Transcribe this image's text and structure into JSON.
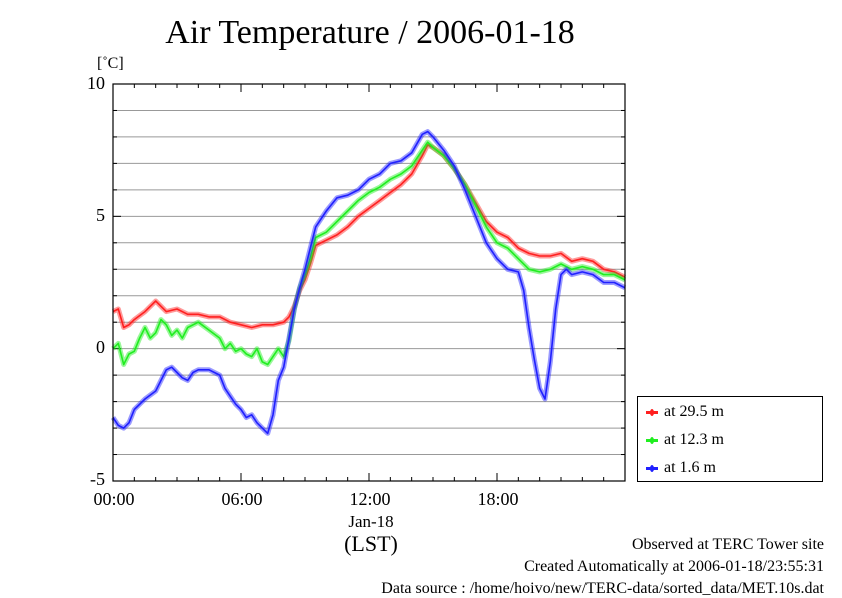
{
  "chart_data": {
    "type": "line",
    "title": "Air Temperature / 2006-01-18",
    "unit": "[˚C]",
    "xlabel": "(LST)",
    "x_date_label": "Jan-18",
    "xlim": [
      0,
      24
    ],
    "ylim": [
      -5,
      10
    ],
    "yticks": [
      "10",
      "5",
      "0",
      "-5"
    ],
    "xticks": [
      "00:00",
      "06:00",
      "12:00",
      "18:00"
    ],
    "grid": true,
    "legend_position": "right-bottom",
    "series": [
      {
        "name": "at 29.5 m",
        "color": "#ff2020",
        "points": [
          [
            0.0,
            1.4
          ],
          [
            0.25,
            1.5
          ],
          [
            0.5,
            0.8
          ],
          [
            0.75,
            0.9
          ],
          [
            1.0,
            1.1
          ],
          [
            1.5,
            1.4
          ],
          [
            2.0,
            1.8
          ],
          [
            2.25,
            1.6
          ],
          [
            2.5,
            1.4
          ],
          [
            3.0,
            1.5
          ],
          [
            3.5,
            1.3
          ],
          [
            4.0,
            1.3
          ],
          [
            4.5,
            1.2
          ],
          [
            5.0,
            1.2
          ],
          [
            5.5,
            1.0
          ],
          [
            6.0,
            0.9
          ],
          [
            6.5,
            0.8
          ],
          [
            7.0,
            0.9
          ],
          [
            7.5,
            0.9
          ],
          [
            8.0,
            1.0
          ],
          [
            8.25,
            1.2
          ],
          [
            8.5,
            1.6
          ],
          [
            8.75,
            2.2
          ],
          [
            9.0,
            2.6
          ],
          [
            9.25,
            3.2
          ],
          [
            9.5,
            3.9
          ],
          [
            10.0,
            4.1
          ],
          [
            10.5,
            4.3
          ],
          [
            11.0,
            4.6
          ],
          [
            11.5,
            5.0
          ],
          [
            12.0,
            5.3
          ],
          [
            12.5,
            5.6
          ],
          [
            13.0,
            5.9
          ],
          [
            13.5,
            6.2
          ],
          [
            14.0,
            6.6
          ],
          [
            14.5,
            7.3
          ],
          [
            14.75,
            7.7
          ],
          [
            15.0,
            7.6
          ],
          [
            15.5,
            7.3
          ],
          [
            16.0,
            6.8
          ],
          [
            16.5,
            6.2
          ],
          [
            17.0,
            5.5
          ],
          [
            17.5,
            4.8
          ],
          [
            18.0,
            4.4
          ],
          [
            18.5,
            4.2
          ],
          [
            19.0,
            3.8
          ],
          [
            19.5,
            3.6
          ],
          [
            20.0,
            3.5
          ],
          [
            20.5,
            3.5
          ],
          [
            21.0,
            3.6
          ],
          [
            21.5,
            3.3
          ],
          [
            22.0,
            3.4
          ],
          [
            22.5,
            3.3
          ],
          [
            23.0,
            3.0
          ],
          [
            23.5,
            2.9
          ],
          [
            24.0,
            2.7
          ]
        ]
      },
      {
        "name": "at 12.3 m",
        "color": "#20ee20",
        "points": [
          [
            0.0,
            0.0
          ],
          [
            0.25,
            0.2
          ],
          [
            0.5,
            -0.6
          ],
          [
            0.75,
            -0.2
          ],
          [
            1.0,
            -0.1
          ],
          [
            1.25,
            0.4
          ],
          [
            1.5,
            0.8
          ],
          [
            1.75,
            0.4
          ],
          [
            2.0,
            0.6
          ],
          [
            2.25,
            1.1
          ],
          [
            2.5,
            0.9
          ],
          [
            2.75,
            0.5
          ],
          [
            3.0,
            0.7
          ],
          [
            3.25,
            0.4
          ],
          [
            3.5,
            0.8
          ],
          [
            4.0,
            1.0
          ],
          [
            4.5,
            0.7
          ],
          [
            5.0,
            0.4
          ],
          [
            5.25,
            0.0
          ],
          [
            5.5,
            0.2
          ],
          [
            5.75,
            -0.1
          ],
          [
            6.0,
            0.0
          ],
          [
            6.25,
            -0.2
          ],
          [
            6.5,
            -0.3
          ],
          [
            6.75,
            0.0
          ],
          [
            7.0,
            -0.5
          ],
          [
            7.25,
            -0.6
          ],
          [
            7.5,
            -0.3
          ],
          [
            7.75,
            0.0
          ],
          [
            8.0,
            -0.3
          ],
          [
            8.25,
            0.3
          ],
          [
            8.5,
            1.5
          ],
          [
            8.75,
            2.3
          ],
          [
            9.0,
            2.8
          ],
          [
            9.25,
            3.4
          ],
          [
            9.5,
            4.2
          ],
          [
            10.0,
            4.4
          ],
          [
            10.5,
            4.8
          ],
          [
            11.0,
            5.2
          ],
          [
            11.5,
            5.6
          ],
          [
            12.0,
            5.9
          ],
          [
            12.5,
            6.1
          ],
          [
            13.0,
            6.4
          ],
          [
            13.5,
            6.6
          ],
          [
            14.0,
            6.9
          ],
          [
            14.5,
            7.5
          ],
          [
            14.75,
            7.8
          ],
          [
            15.0,
            7.6
          ],
          [
            15.5,
            7.3
          ],
          [
            16.0,
            6.8
          ],
          [
            16.5,
            6.2
          ],
          [
            17.0,
            5.4
          ],
          [
            17.5,
            4.6
          ],
          [
            18.0,
            4.0
          ],
          [
            18.5,
            3.8
          ],
          [
            19.0,
            3.4
          ],
          [
            19.5,
            3.0
          ],
          [
            20.0,
            2.9
          ],
          [
            20.5,
            3.0
          ],
          [
            21.0,
            3.2
          ],
          [
            21.5,
            3.0
          ],
          [
            22.0,
            3.1
          ],
          [
            22.5,
            3.0
          ],
          [
            23.0,
            2.8
          ],
          [
            23.5,
            2.8
          ],
          [
            24.0,
            2.6
          ]
        ]
      },
      {
        "name": "at 1.6 m",
        "color": "#2020ff",
        "points": [
          [
            0.0,
            -2.6
          ],
          [
            0.25,
            -2.9
          ],
          [
            0.5,
            -3.0
          ],
          [
            0.75,
            -2.8
          ],
          [
            1.0,
            -2.3
          ],
          [
            1.5,
            -1.9
          ],
          [
            2.0,
            -1.6
          ],
          [
            2.25,
            -1.2
          ],
          [
            2.5,
            -0.8
          ],
          [
            2.75,
            -0.7
          ],
          [
            3.0,
            -0.9
          ],
          [
            3.25,
            -1.1
          ],
          [
            3.5,
            -1.2
          ],
          [
            3.75,
            -0.9
          ],
          [
            4.0,
            -0.8
          ],
          [
            4.5,
            -0.8
          ],
          [
            5.0,
            -1.0
          ],
          [
            5.25,
            -1.5
          ],
          [
            5.5,
            -1.8
          ],
          [
            5.75,
            -2.1
          ],
          [
            6.0,
            -2.3
          ],
          [
            6.25,
            -2.6
          ],
          [
            6.5,
            -2.5
          ],
          [
            6.75,
            -2.8
          ],
          [
            7.0,
            -3.0
          ],
          [
            7.25,
            -3.2
          ],
          [
            7.5,
            -2.5
          ],
          [
            7.75,
            -1.2
          ],
          [
            8.0,
            -0.7
          ],
          [
            8.25,
            0.4
          ],
          [
            8.5,
            1.5
          ],
          [
            8.75,
            2.3
          ],
          [
            9.0,
            3.0
          ],
          [
            9.25,
            3.8
          ],
          [
            9.5,
            4.6
          ],
          [
            10.0,
            5.2
          ],
          [
            10.5,
            5.7
          ],
          [
            11.0,
            5.8
          ],
          [
            11.5,
            6.0
          ],
          [
            12.0,
            6.4
          ],
          [
            12.5,
            6.6
          ],
          [
            13.0,
            7.0
          ],
          [
            13.5,
            7.1
          ],
          [
            14.0,
            7.4
          ],
          [
            14.5,
            8.1
          ],
          [
            14.75,
            8.2
          ],
          [
            15.0,
            8.0
          ],
          [
            15.5,
            7.5
          ],
          [
            16.0,
            6.9
          ],
          [
            16.5,
            6.0
          ],
          [
            17.0,
            5.0
          ],
          [
            17.5,
            4.0
          ],
          [
            18.0,
            3.4
          ],
          [
            18.5,
            3.0
          ],
          [
            19.0,
            2.9
          ],
          [
            19.25,
            2.2
          ],
          [
            19.5,
            0.8
          ],
          [
            19.75,
            -0.4
          ],
          [
            20.0,
            -1.5
          ],
          [
            20.25,
            -1.9
          ],
          [
            20.5,
            -0.5
          ],
          [
            20.75,
            1.5
          ],
          [
            21.0,
            2.8
          ],
          [
            21.25,
            3.0
          ],
          [
            21.5,
            2.8
          ],
          [
            22.0,
            2.9
          ],
          [
            22.5,
            2.8
          ],
          [
            23.0,
            2.5
          ],
          [
            23.5,
            2.5
          ],
          [
            24.0,
            2.3
          ]
        ]
      }
    ]
  },
  "footer": {
    "line1": "Observed at TERC Tower site",
    "line2": "Created Automatically at 2006-01-18/23:55:31",
    "line3": "Data source : /home/hoivo/new/TERC-data/sorted_data/MET.10s.dat"
  }
}
